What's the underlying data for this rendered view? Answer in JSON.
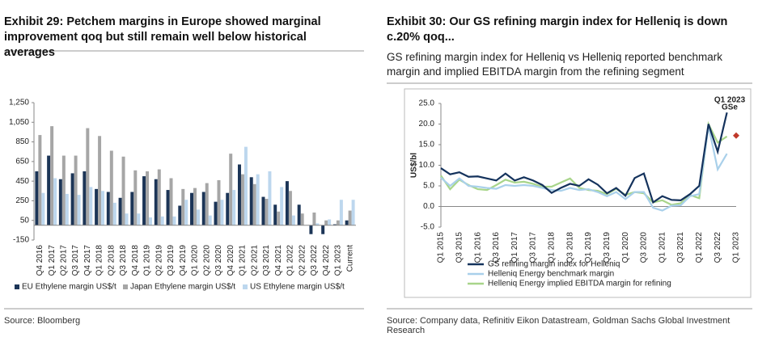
{
  "chart_data": [
    {
      "type": "bar",
      "title": "Exhibit 29: Petchem margins in Europe showed marginal improvement qoq but still remain well below historical averages",
      "source": "Source: Bloomberg",
      "categories": [
        "Q4 2016",
        "Q1 2017",
        "Q2 2017",
        "Q3 2017",
        "Q4 2017",
        "Q1 2018",
        "Q2 2018",
        "Q3 2018",
        "Q4 2018",
        "Q1 2019",
        "Q2 2019",
        "Q3 2019",
        "Q4 2019",
        "Q1 2020",
        "Q2 2020",
        "Q3 2020",
        "Q4 2020",
        "Q1 2021",
        "Q2 2021",
        "Q3 2021",
        "Q4 2021",
        "Q1 2022",
        "Q2 2022",
        "Q3 2022",
        "Q4 2022",
        "Q1 2023",
        "Current"
      ],
      "series": [
        {
          "name": "EU Ethylene margin US$/t",
          "color": "#1c3557",
          "values": [
            550,
            710,
            470,
            530,
            550,
            370,
            340,
            280,
            340,
            500,
            470,
            360,
            200,
            330,
            340,
            240,
            330,
            620,
            490,
            290,
            210,
            450,
            210,
            -90,
            -90,
            10,
            50
          ]
        },
        {
          "name": "Japan Ethylene margin US$/t",
          "color": "#a6a6a6",
          "values": [
            920,
            1010,
            710,
            710,
            990,
            910,
            760,
            700,
            560,
            550,
            570,
            480,
            370,
            380,
            430,
            460,
            730,
            520,
            420,
            270,
            140,
            350,
            120,
            130,
            50,
            50,
            150
          ]
        },
        {
          "name": "US Ethylene margin US$/t",
          "color": "#bdd7ee",
          "values": [
            330,
            480,
            320,
            310,
            390,
            350,
            230,
            120,
            120,
            80,
            90,
            90,
            260,
            160,
            100,
            260,
            360,
            800,
            520,
            550,
            390,
            100,
            0,
            20,
            60,
            260,
            260
          ]
        }
      ],
      "ylim": [
        -150,
        1250
      ],
      "yticks": [
        -150,
        50,
        250,
        450,
        650,
        850,
        {
          "value": 1050,
          "label": "1,050"
        },
        {
          "value": 1250,
          "label": "1,250"
        }
      ]
    },
    {
      "type": "line",
      "title": "Exhibit 30: Our GS refining margin index for Helleniq is down c.20% qoq...",
      "subtitle": "GS refining margin index for Helleniq vs Helleniq reported benchmark margin and implied EBITDA margin from the refining segment",
      "source": "Source: Company data, Refinitiv Eikon Datastream, Goldman Sachs Global Investment Research",
      "y_label": "US$/bl",
      "categories": [
        "Q1 2015",
        null,
        "Q3 2015",
        null,
        "Q1 2016",
        null,
        "Q3 2016",
        null,
        "Q1 2017",
        null,
        "Q3 2017",
        null,
        "Q1 2018",
        null,
        "Q3 2018",
        null,
        "Q1 2019",
        null,
        "Q3 2019",
        null,
        "Q1 2020",
        null,
        "Q3 2020",
        null,
        "Q1 2021",
        null,
        "Q3 2021",
        null,
        "Q1 2022",
        null,
        "Q3 2022",
        null,
        "Q1 2023"
      ],
      "series": [
        {
          "name": "GS refining margin index for Helleniq",
          "color": "#14325c",
          "values": [
            9.3,
            7.8,
            8.3,
            7.2,
            7.3,
            6.8,
            6.3,
            8.0,
            6.3,
            7.1,
            6.3,
            5.2,
            3.3,
            4.5,
            5.5,
            5.0,
            6.6,
            5.3,
            3.2,
            4.5,
            2.6,
            6.9,
            8.0,
            1.0,
            2.5,
            1.6,
            1.5,
            3.0,
            5.0,
            20.0,
            13.3,
            22.8,
            null
          ]
        },
        {
          "name": "Helleniq Energy benchmark margin",
          "color": "#a9d0ea",
          "values": [
            7.0,
            5.0,
            6.8,
            5.0,
            4.8,
            4.5,
            4.3,
            5.2,
            5.0,
            5.2,
            5.0,
            4.5,
            4.0,
            3.8,
            4.5,
            4.0,
            4.2,
            3.5,
            2.5,
            3.5,
            1.8,
            3.5,
            3.5,
            -0.3,
            -1.0,
            0.2,
            0.3,
            2.5,
            3.0,
            19.5,
            9.0,
            12.8,
            null
          ]
        },
        {
          "name": "Helleniq Energy implied EBITDA margin for refining",
          "color": "#a8d58a",
          "values": [
            7.5,
            4.2,
            6.5,
            5.2,
            4.2,
            4.0,
            5.2,
            6.5,
            5.8,
            6.0,
            5.5,
            4.8,
            4.8,
            5.8,
            6.8,
            4.5,
            4.0,
            3.8,
            3.0,
            4.3,
            2.8,
            3.5,
            3.2,
            1.0,
            1.5,
            0.4,
            0.8,
            2.8,
            2.0,
            20.0,
            15.5,
            17.0,
            null
          ]
        }
      ],
      "annotation": {
        "lines": [
          "Q1 2023",
          "GSe"
        ],
        "value": 17.2,
        "color": "#c0392b"
      },
      "ylim": [
        -5,
        25
      ],
      "yticks": [
        {
          "value": -5,
          "label": "-5.0"
        },
        {
          "value": 0,
          "label": "0.0"
        },
        {
          "value": 5,
          "label": "5.0"
        },
        {
          "value": 10,
          "label": "10.0"
        },
        {
          "value": 15,
          "label": "15.0"
        },
        {
          "value": 20,
          "label": "20.0"
        },
        {
          "value": 25,
          "label": "25.0"
        }
      ]
    }
  ]
}
